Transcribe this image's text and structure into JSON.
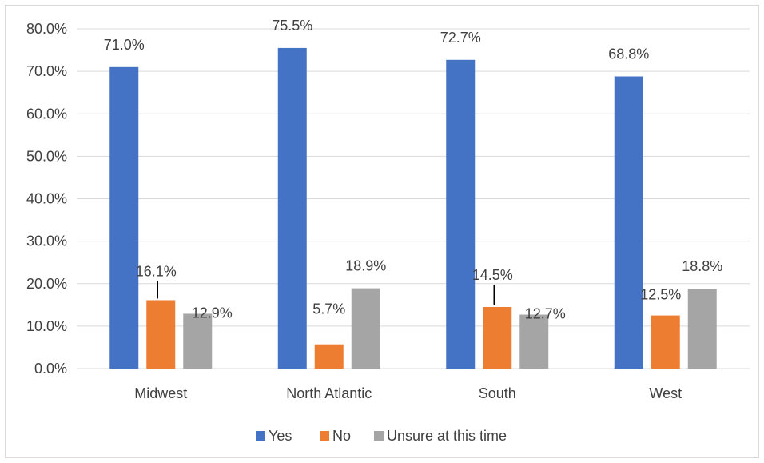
{
  "chart_data": {
    "type": "bar",
    "categories": [
      "Midwest",
      "North Atlantic",
      "South",
      "West"
    ],
    "series": [
      {
        "name": "Yes",
        "color": "#4472C4",
        "values": [
          71.0,
          75.5,
          72.7,
          68.8
        ],
        "labels": [
          "71.0%",
          "75.5%",
          "72.7%",
          "68.8%"
        ]
      },
      {
        "name": "No",
        "color": "#ED7D31",
        "values": [
          16.1,
          5.7,
          14.5,
          12.5
        ],
        "labels": [
          "16.1%",
          "5.7%",
          "14.5%",
          "12.5%"
        ]
      },
      {
        "name": "Unsure at this time",
        "color": "#A5A5A5",
        "values": [
          12.9,
          18.9,
          12.7,
          18.8
        ],
        "labels": [
          "12.9%",
          "18.9%",
          "12.7%",
          "18.8%"
        ]
      }
    ],
    "y_ticks": [
      "0.0%",
      "10.0%",
      "20.0%",
      "30.0%",
      "40.0%",
      "50.0%",
      "60.0%",
      "70.0%",
      "80.0%"
    ],
    "ylim": [
      0,
      80
    ],
    "grid": true,
    "legend_position": "bottom",
    "title": "",
    "xlabel": "",
    "ylabel": ""
  }
}
